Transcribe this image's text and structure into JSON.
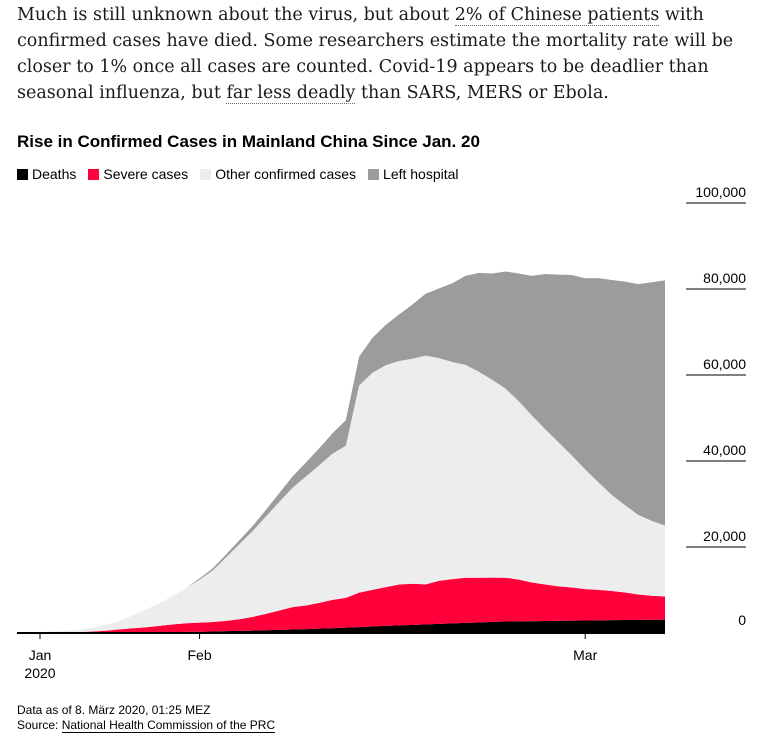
{
  "intro": {
    "p1": "Much is still unknown about the virus, but about ",
    "link1": "2% of Chinese patients",
    "p2": " with confirmed cases have died. Some researchers estimate the mortality rate will be closer to 1% once all cases are counted. Covid-19 appears to be deadlier than seasonal influenza, but ",
    "link2": "far less deadly",
    "p3": " than SARS, MERS or Ebola."
  },
  "colors": {
    "deaths": "#000000",
    "severe": "#ff003a",
    "other": "#ededed",
    "left": "#9c9c9c",
    "axis": "#000000"
  },
  "chart_data": {
    "type": "area",
    "stacked": true,
    "title": "Rise in Confirmed Cases in Mainland China Since Jan. 20",
    "legend_position": "top-left",
    "y_axis_position": "right",
    "ylim": [
      0,
      100000
    ],
    "yticks": [
      0,
      20000,
      40000,
      60000,
      80000,
      100000
    ],
    "ytick_labels": [
      "0",
      "20,000",
      "40,000",
      "60,000",
      "80,000",
      "100,000"
    ],
    "xlim": [
      "2020-01-20",
      "2020-03-07"
    ],
    "xticks": [
      {
        "date": "2020-01-20",
        "label": "Jan",
        "sublabel": "2020"
      },
      {
        "date": "2020-02-01",
        "label": "Feb",
        "sublabel": ""
      },
      {
        "date": "2020-03-01",
        "label": "Mar",
        "sublabel": ""
      }
    ],
    "x": [
      "2020-01-20",
      "2020-01-21",
      "2020-01-22",
      "2020-01-23",
      "2020-01-24",
      "2020-01-25",
      "2020-01-26",
      "2020-01-27",
      "2020-01-28",
      "2020-01-29",
      "2020-01-30",
      "2020-01-31",
      "2020-02-01",
      "2020-02-02",
      "2020-02-03",
      "2020-02-04",
      "2020-02-05",
      "2020-02-06",
      "2020-02-07",
      "2020-02-08",
      "2020-02-09",
      "2020-02-10",
      "2020-02-11",
      "2020-02-12",
      "2020-02-13",
      "2020-02-14",
      "2020-02-15",
      "2020-02-16",
      "2020-02-17",
      "2020-02-18",
      "2020-02-19",
      "2020-02-20",
      "2020-02-21",
      "2020-02-22",
      "2020-02-23",
      "2020-02-24",
      "2020-02-25",
      "2020-02-26",
      "2020-02-27",
      "2020-02-28",
      "2020-02-29",
      "2020-03-01",
      "2020-03-02",
      "2020-03-03",
      "2020-03-04",
      "2020-03-05",
      "2020-03-06",
      "2020-03-07"
    ],
    "series": [
      {
        "name": "Deaths",
        "values": [
          6,
          9,
          17,
          25,
          41,
          56,
          80,
          106,
          132,
          170,
          213,
          259,
          304,
          361,
          425,
          490,
          563,
          636,
          722,
          811,
          908,
          1016,
          1113,
          1259,
          1380,
          1523,
          1665,
          1770,
          1868,
          2004,
          2118,
          2236,
          2345,
          2442,
          2592,
          2663,
          2715,
          2744,
          2788,
          2835,
          2870,
          2912,
          2943,
          2981,
          3012,
          3042,
          3070,
          3097
        ]
      },
      {
        "name": "Severe cases",
        "values": [
          50,
          60,
          100,
          200,
          300,
          500,
          750,
          1000,
          1200,
          1500,
          1800,
          2000,
          2100,
          2200,
          2400,
          2700,
          3200,
          3800,
          4500,
          5200,
          5500,
          6000,
          6600,
          6900,
          8000,
          8500,
          9000,
          9500,
          9600,
          9300,
          10000,
          10300,
          10500,
          10400,
          10300,
          10200,
          9700,
          9000,
          8500,
          8000,
          7700,
          7300,
          7100,
          6800,
          6400,
          5900,
          5600,
          5400
        ]
      },
      {
        "name": "Other confirmed cases",
        "values": [
          220,
          300,
          400,
          600,
          900,
          1400,
          2000,
          3000,
          4200,
          5300,
          6600,
          8200,
          10000,
          12000,
          14800,
          17500,
          20000,
          22700,
          25300,
          27800,
          30000,
          32000,
          34000,
          35400,
          48200,
          50500,
          51600,
          52000,
          52300,
          53200,
          51800,
          50500,
          49500,
          47900,
          46000,
          44000,
          41500,
          38800,
          36100,
          33500,
          30700,
          27800,
          25000,
          22300,
          20300,
          18500,
          17400,
          16500
        ]
      },
      {
        "name": "Left hospital",
        "values": [
          0,
          0,
          0,
          0,
          0,
          0,
          0,
          0,
          0,
          0,
          0,
          0,
          300,
          500,
          650,
          900,
          1150,
          1550,
          2050,
          2650,
          3250,
          3950,
          4750,
          5950,
          6700,
          8100,
          9400,
          10800,
          12600,
          14400,
          16200,
          18300,
          20700,
          23000,
          24700,
          27200,
          29700,
          32500,
          36100,
          39000,
          42000,
          44500,
          47500,
          50000,
          52000,
          53700,
          55500,
          57000
        ]
      }
    ]
  },
  "footer": {
    "data_note": "Data as of 8. März 2020, 01:25 MEZ",
    "source_prefix": "Source: ",
    "source_link": "National Health Commission of the PRC"
  }
}
